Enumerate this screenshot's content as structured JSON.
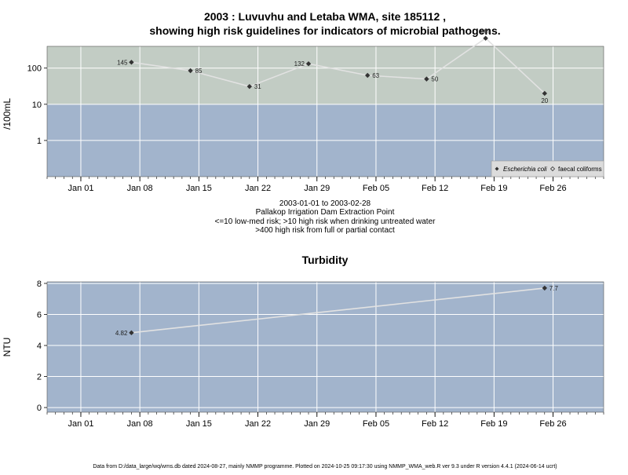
{
  "chart_data": [
    {
      "type": "line",
      "title_line1": "2003 : Luvuvhu and Letaba WMA, site 185112 ,",
      "title_line2": "showing high risk guidelines for indicators of microbial pathogens.",
      "ylabel": "/100mL",
      "yscale": "log",
      "ylim": [
        0.1,
        400
      ],
      "yticks": [
        1,
        10,
        100
      ],
      "ytick_labels": [
        "1",
        "10",
        "100"
      ],
      "xlim": [
        "2002-12-28",
        "2003-03-04"
      ],
      "xticks": [
        "2003-01-01",
        "2003-01-08",
        "2003-01-15",
        "2003-01-22",
        "2003-01-29",
        "2003-02-05",
        "2003-02-12",
        "2003-02-19",
        "2003-02-26"
      ],
      "xtick_labels": [
        "Jan 01",
        "Jan 08",
        "Jan 15",
        "Jan 22",
        "Jan 29",
        "Feb 05",
        "Feb 12",
        "Feb 19",
        "Feb 26"
      ],
      "bands": [
        {
          "from": 0.1,
          "to": 10,
          "color": "#a2b4cc"
        },
        {
          "from": 10,
          "to": 400,
          "color": "#c2ccc4"
        },
        {
          "from": 400,
          "to": 1000,
          "color": "#fff6c6"
        }
      ],
      "series": [
        {
          "name": "Escherichia coli",
          "x": [
            "2003-01-07",
            "2003-01-14",
            "2003-01-21",
            "2003-01-28",
            "2003-02-04",
            "2003-02-11",
            "2003-02-18",
            "2003-02-25"
          ],
          "values": [
            145,
            85,
            31,
            132,
            63,
            50,
            669,
            20
          ],
          "labels": [
            "145",
            "85",
            "31",
            "132",
            "63",
            "50",
            "669",
            "20"
          ]
        }
      ],
      "legend": {
        "position": "bottom-right",
        "entries": [
          "Escherichia coli",
          "faecal coliforms"
        ]
      },
      "subtitle": [
        "2003-01-01 to 2003-02-28",
        "Pallakop Irrigation Dam Extraction Point",
        "<=10 low-med risk; >10 high risk when drinking untreated water",
        ">400 high risk from full or partial contact"
      ],
      "grid": true
    },
    {
      "type": "line",
      "title": "Turbidity",
      "ylabel": "NTU",
      "ylim": [
        -0.3,
        8.1
      ],
      "yticks": [
        0,
        2,
        4,
        6,
        8
      ],
      "ytick_labels": [
        "0",
        "2",
        "4",
        "6",
        "8"
      ],
      "xlim": [
        "2002-12-28",
        "2003-03-04"
      ],
      "xticks": [
        "2003-01-01",
        "2003-01-08",
        "2003-01-15",
        "2003-01-22",
        "2003-01-29",
        "2003-02-05",
        "2003-02-12",
        "2003-02-19",
        "2003-02-26"
      ],
      "xtick_labels": [
        "Jan 01",
        "Jan 08",
        "Jan 15",
        "Jan 22",
        "Jan 29",
        "Feb 05",
        "Feb 12",
        "Feb 19",
        "Feb 26"
      ],
      "series": [
        {
          "x": [
            "2003-01-07",
            "2003-02-25"
          ],
          "values": [
            4.82,
            7.7
          ],
          "labels": [
            "4.82",
            "7.7"
          ]
        }
      ],
      "grid": true
    }
  ],
  "footer": "Data from D:/data_large/wq/wms.db dated 2024-08-27, mainly NMMP programme. Plotted on 2024-10-25 09:17:30 using NMMP_WMA_web.R ver 9.3 under R version 4.4.1 (2024-06-14 ucrt)",
  "colors": {
    "panel": "#a2b4cc",
    "line": "#e2e2e2",
    "point": "#333333",
    "grid": "#ffffff"
  }
}
